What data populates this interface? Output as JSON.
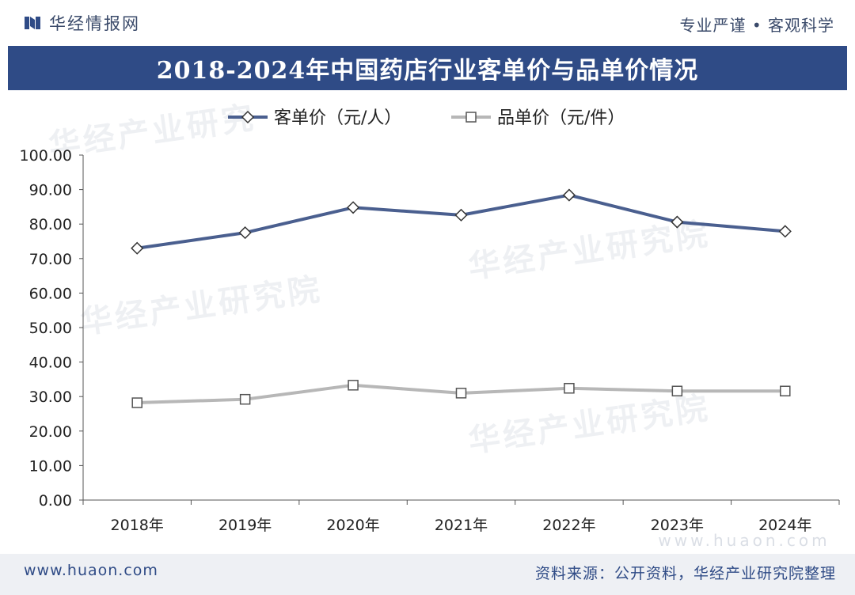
{
  "header": {
    "brand_name": "华经情报网",
    "tagline": "专业严谨 • 客观科学"
  },
  "title": "2018-2024年中国药店行业客单价与品单价情况",
  "colors": {
    "title_bg": "#2f4b86",
    "series_customer": "#4a5f8f",
    "series_item": "#b7b7b7",
    "axis": "#555555"
  },
  "chart_data": {
    "type": "line",
    "categories": [
      "2018年",
      "2019年",
      "2020年",
      "2021年",
      "2022年",
      "2023年",
      "2024年"
    ],
    "series": [
      {
        "name": "客单价（元/人）",
        "marker": "diamond",
        "values": [
          73.0,
          77.5,
          84.8,
          82.6,
          88.4,
          80.6,
          77.9
        ]
      },
      {
        "name": "品单价（元/件）",
        "marker": "square",
        "values": [
          28.2,
          29.2,
          33.3,
          31.0,
          32.4,
          31.6,
          31.6
        ]
      }
    ],
    "ylim": [
      0,
      100
    ],
    "yticks": [
      "100.00",
      "90.00",
      "80.00",
      "70.00",
      "60.00",
      "50.00",
      "40.00",
      "30.00",
      "20.00",
      "10.00",
      "0.00"
    ],
    "grid": false,
    "legend_position": "top"
  },
  "watermarks": [
    "华经产业研究",
    "华经产业研究院",
    "华经产业研究院",
    "华经产业研究院"
  ],
  "watermark_url": "www.huaon.com",
  "footer": {
    "url": "www.huaon.com",
    "source": "资料来源：公开资料，华经产业研究院整理"
  }
}
